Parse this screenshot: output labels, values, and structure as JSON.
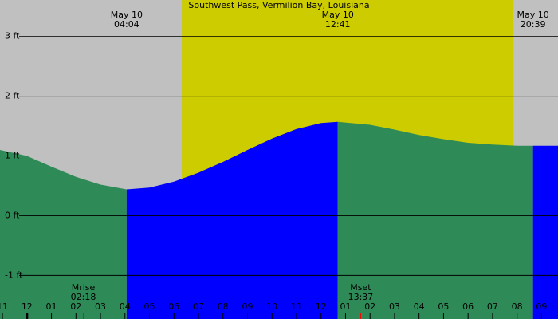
{
  "chart_data": {
    "type": "tide",
    "title": "Southwest Pass, Vermilion Bay, Louisiana",
    "x": [
      -1.1,
      0,
      1,
      2,
      3,
      4.067,
      5,
      6,
      7,
      8,
      9,
      10,
      11,
      12,
      12.683,
      14,
      15,
      16,
      17,
      18,
      19,
      20,
      20.65,
      21.67
    ],
    "series": [
      {
        "values": [
          1.1,
          1.0,
          0.82,
          0.65,
          0.52,
          0.44,
          0.47,
          0.57,
          0.72,
          0.9,
          1.1,
          1.29,
          1.45,
          1.55,
          1.57,
          1.52,
          1.44,
          1.35,
          1.28,
          1.22,
          1.19,
          1.17,
          1.17,
          1.17
        ]
      }
    ],
    "rising_color": "#0000ff",
    "falling_color": "#2e8b57",
    "night_color": "#c0c0c0",
    "day_color": "#cccc00",
    "daylight": [
      6.32,
      19.85
    ],
    "tide_events": [
      {
        "date": "May 10",
        "time": "04:04",
        "x": 4.067
      },
      {
        "date": "May 10",
        "time": "12:41",
        "x": 12.683
      },
      {
        "date": "May 10",
        "time": "20:39",
        "x": 20.65
      }
    ],
    "moon_events": [
      {
        "label": "Mrise",
        "time": "02:18",
        "x": 2.3
      },
      {
        "label": "Mset",
        "time": "13:37",
        "x": 13.617
      }
    ],
    "xlim": [
      -1.1,
      21.67
    ],
    "xticks": [
      {
        "value": -1,
        "label": "11"
      },
      {
        "value": 0,
        "label": "12"
      },
      {
        "value": 1,
        "label": "01"
      },
      {
        "value": 2,
        "label": "02"
      },
      {
        "value": 3,
        "label": "03"
      },
      {
        "value": 4,
        "label": "04"
      },
      {
        "value": 5,
        "label": "05"
      },
      {
        "value": 6,
        "label": "06"
      },
      {
        "value": 7,
        "label": "07"
      },
      {
        "value": 8,
        "label": "08"
      },
      {
        "value": 9,
        "label": "09"
      },
      {
        "value": 10,
        "label": "10"
      },
      {
        "value": 11,
        "label": "11"
      },
      {
        "value": 12,
        "label": "12"
      },
      {
        "value": 13,
        "label": "01"
      },
      {
        "value": 14,
        "label": "02"
      },
      {
        "value": 15,
        "label": "03"
      },
      {
        "value": 16,
        "label": "04"
      },
      {
        "value": 17,
        "label": "05"
      },
      {
        "value": 18,
        "label": "06"
      },
      {
        "value": 19,
        "label": "07"
      },
      {
        "value": 20,
        "label": "08"
      },
      {
        "value": 21,
        "label": "09"
      }
    ],
    "ylim": [
      -1.73,
      3.61
    ],
    "yticks": [
      {
        "value": 3,
        "label": "3 ft"
      },
      {
        "value": 2,
        "label": "2 ft"
      },
      {
        "value": 1,
        "label": "1 ft"
      },
      {
        "value": 0,
        "label": "0 ft"
      },
      {
        "value": -1,
        "label": "-1 ft"
      }
    ],
    "grid": true
  }
}
